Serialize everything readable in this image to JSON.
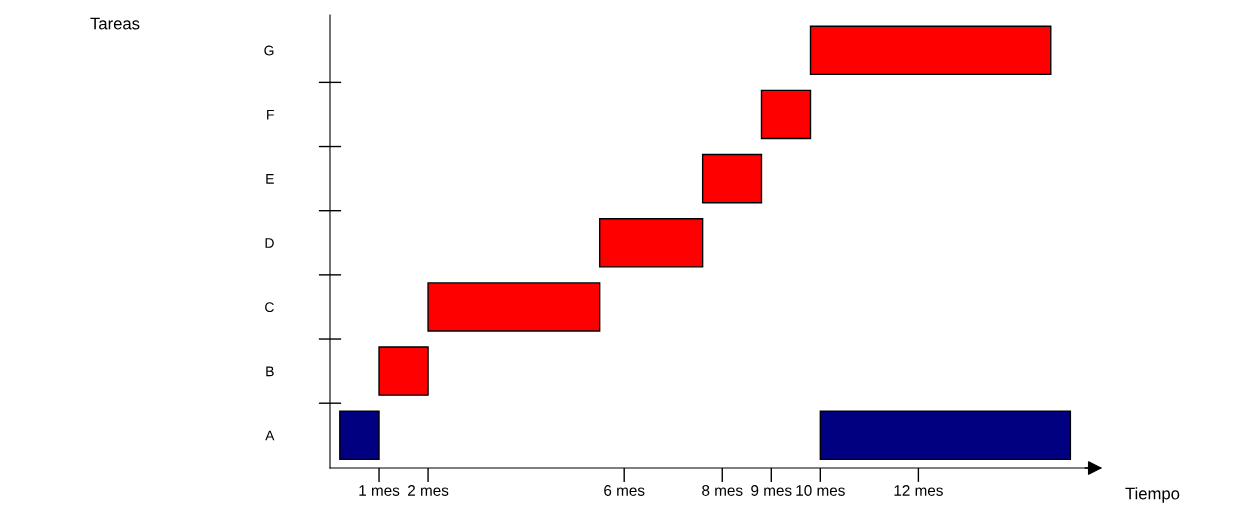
{
  "chart_data": {
    "type": "bar",
    "orientation": "horizontal",
    "annotations": [
      "Tareas"
    ],
    "xlabel": "Tiempo",
    "categories": [
      "G",
      "F",
      "E",
      "D",
      "C",
      "B",
      "A"
    ],
    "series": [
      {
        "color": "#000080",
        "values": [
          null,
          null,
          null,
          null,
          null,
          null,
          0.8
        ],
        "base": [
          null,
          null,
          null,
          null,
          null,
          null,
          0.2
        ]
      },
      {
        "color": "#000080",
        "values": [
          null,
          null,
          null,
          null,
          null,
          null,
          5.1
        ],
        "base": [
          null,
          null,
          null,
          null,
          null,
          null,
          10
        ]
      },
      {
        "color": "#ff0000",
        "values": [
          4.9,
          1.0,
          1.2,
          2.1,
          3.5,
          1,
          null
        ],
        "base": [
          9.8,
          8.8,
          7.6,
          5.5,
          2,
          1,
          null
        ]
      }
    ],
    "xlim": [
      0,
      15.5
    ],
    "xticks": [
      {
        "value": 1,
        "label": "1 mes"
      },
      {
        "value": 2,
        "label": "2 mes"
      },
      {
        "value": 6,
        "label": "6 mes"
      },
      {
        "value": 8,
        "label": "8 mes"
      },
      {
        "value": 9,
        "label": "9 mes"
      },
      {
        "value": 10,
        "label": "10 mes"
      },
      {
        "value": 12,
        "label": "12 mes"
      }
    ],
    "grid": false,
    "legend": false
  }
}
